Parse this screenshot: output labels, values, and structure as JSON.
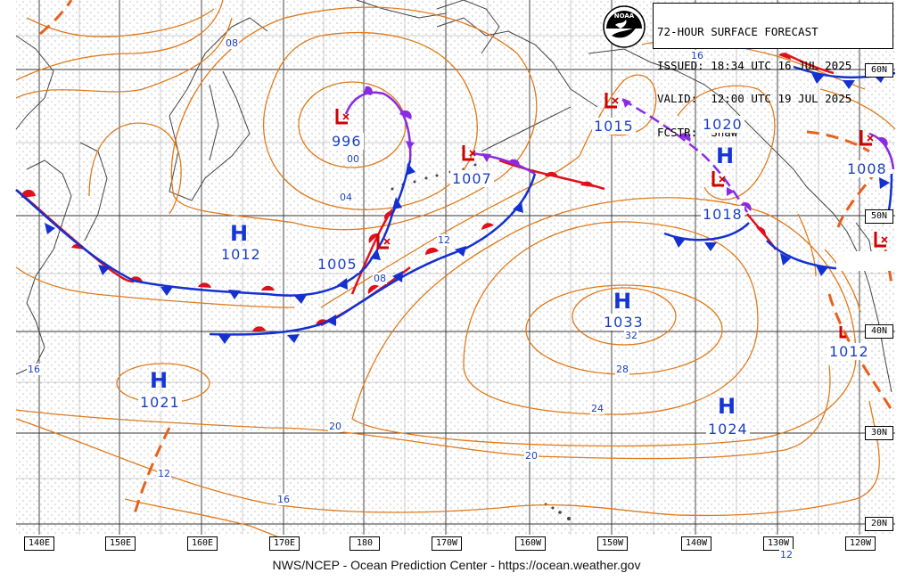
{
  "header": {
    "lines": [
      "72-HOUR SURFACE FORECAST",
      "ISSUED: 18:34 UTC 16 JUL 2025",
      "VALID:  12:00 UTC 19 JUL 2025",
      "FCSTR:  Shaw"
    ],
    "logo_text": "NOAA"
  },
  "footer": "NWS/NCEP - Ocean Prediction Center - https://ocean.weather.gov",
  "latitude_labels": [
    "60N",
    "50N",
    "40N",
    "30N",
    "20N"
  ],
  "longitude_labels": [
    "140E",
    "150E",
    "160E",
    "170E",
    "180",
    "170W",
    "160W",
    "150W",
    "140W",
    "130W",
    "120W"
  ],
  "pressure_systems": {
    "H1012": {
      "type": "H",
      "value": "1012"
    },
    "H1021": {
      "type": "H",
      "value": "1021"
    },
    "H1033": {
      "type": "H",
      "value": "1033"
    },
    "H1024": {
      "type": "H",
      "value": "1024"
    },
    "H1020": {
      "type": "H",
      "value": "1020"
    },
    "L996": {
      "type": "L",
      "value": "996"
    },
    "L1005": {
      "type": "L",
      "value": "1005"
    },
    "L1007": {
      "type": "L",
      "value": "1007"
    },
    "L1015": {
      "type": "L",
      "value": "1015"
    },
    "L1018": {
      "type": "L",
      "value": "1018"
    },
    "L1008": {
      "type": "L",
      "value": "1008"
    },
    "L1012": {
      "type": "L",
      "value": "1012"
    }
  },
  "isobar_labels": {
    "a08": "08",
    "a00": "00",
    "a04": "04",
    "a12": "12",
    "b08": "08",
    "a16top": "16",
    "a32": "32",
    "a28": "28",
    "a24": "24",
    "a20mid": "20",
    "a20left": "20",
    "a12left": "12",
    "a16left": "16",
    "a16bottom": "16",
    "a12bottom": "12"
  },
  "colors": {
    "isobar": "#e07a1a",
    "warm_front": "#e0101a",
    "cold_front": "#1430d0",
    "occluded_front": "#8a2be2",
    "high_label": "#1435d8",
    "low_symbol": "#d00000",
    "grid": "#333333",
    "coast": "#444444"
  }
}
